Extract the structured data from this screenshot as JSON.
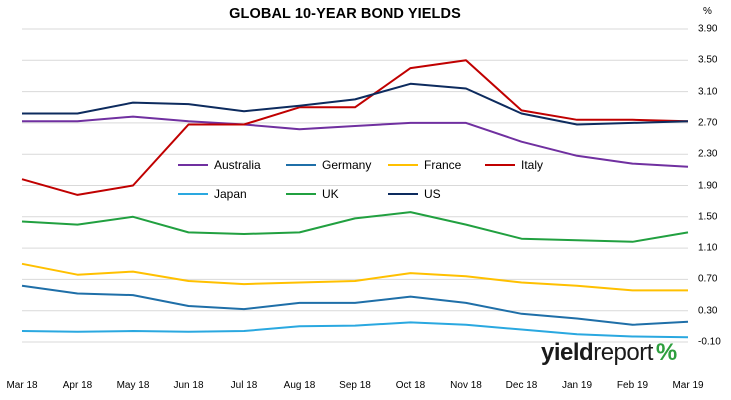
{
  "chart_data": {
    "type": "line",
    "title": "GLOBAL 10-YEAR BOND YIELDS",
    "ylabel": "%",
    "ylim": [
      -0.1,
      3.9
    ],
    "yticks": [
      "3.90",
      "3.50",
      "3.10",
      "2.70",
      "2.30",
      "1.90",
      "1.50",
      "1.10",
      "0.70",
      "0.30",
      "-0.10"
    ],
    "ytick_values": [
      3.9,
      3.5,
      3.1,
      2.7,
      2.3,
      1.9,
      1.5,
      1.1,
      0.7,
      0.3,
      -0.1
    ],
    "xticks": [
      "Mar 18",
      "Apr 18",
      "May 18",
      "Jun 18",
      "Jul 18",
      "Aug 18",
      "Sep 18",
      "Oct 18",
      "Nov 18",
      "Dec 18",
      "Jan 19",
      "Feb 19",
      "Mar 19"
    ],
    "grid": true,
    "legend_position": "middle",
    "x": [
      "Mar 18",
      "Apr 18",
      "May 18",
      "Jun 18",
      "Jul 18",
      "Aug 18",
      "Sep 18",
      "Oct 18",
      "Nov 18",
      "Dec 18",
      "Jan 19",
      "Feb 19",
      "Mar 19"
    ],
    "series": [
      {
        "name": "Australia",
        "color": "#7030a0",
        "values": [
          2.72,
          2.72,
          2.78,
          2.72,
          2.68,
          2.62,
          2.66,
          2.7,
          2.7,
          2.46,
          2.28,
          2.18,
          2.14
        ]
      },
      {
        "name": "Germany",
        "color": "#1f6fa8",
        "values": [
          0.62,
          0.52,
          0.5,
          0.36,
          0.32,
          0.4,
          0.4,
          0.48,
          0.4,
          0.26,
          0.2,
          0.12,
          0.16
        ]
      },
      {
        "name": "France",
        "color": "#ffc000",
        "values": [
          0.9,
          0.76,
          0.8,
          0.68,
          0.64,
          0.66,
          0.68,
          0.78,
          0.74,
          0.66,
          0.62,
          0.56,
          0.56
        ]
      },
      {
        "name": "Italy",
        "color": "#c00000",
        "values": [
          1.98,
          1.78,
          1.9,
          2.68,
          2.68,
          2.9,
          2.9,
          3.4,
          3.5,
          2.86,
          2.74,
          2.74,
          2.72
        ]
      },
      {
        "name": "Japan",
        "color": "#2aa8e0",
        "values": [
          0.04,
          0.03,
          0.04,
          0.03,
          0.04,
          0.1,
          0.11,
          0.15,
          0.12,
          0.06,
          0.0,
          -0.03,
          -0.04
        ]
      },
      {
        "name": "UK",
        "color": "#21a040",
        "values": [
          1.44,
          1.4,
          1.5,
          1.3,
          1.28,
          1.3,
          1.48,
          1.56,
          1.4,
          1.22,
          1.2,
          1.18,
          1.3
        ]
      },
      {
        "name": "US",
        "color": "#0d2b5e",
        "values": [
          2.82,
          2.82,
          2.96,
          2.94,
          2.85,
          2.92,
          3.0,
          3.2,
          3.14,
          2.82,
          2.68,
          2.7,
          2.72
        ]
      }
    ]
  },
  "logo": {
    "word1": "yield",
    "word2": "report",
    "mark": "%"
  }
}
